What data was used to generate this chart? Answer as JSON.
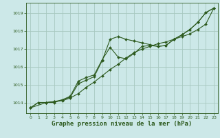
{
  "bg_color": "#cce8e8",
  "grid_color": "#a8c8c0",
  "line_color": "#2d5a1e",
  "xlabel": "Graphe pression niveau de la mer (hPa)",
  "xlabel_fontsize": 6.5,
  "ylim": [
    1013.4,
    1019.6
  ],
  "xlim": [
    -0.5,
    23.5
  ],
  "yticks": [
    1014,
    1015,
    1016,
    1017,
    1018,
    1019
  ],
  "xticks": [
    0,
    1,
    2,
    3,
    4,
    5,
    6,
    7,
    8,
    9,
    10,
    11,
    12,
    13,
    14,
    15,
    16,
    17,
    18,
    19,
    20,
    21,
    22,
    23
  ],
  "tick_labelsize": 4.5,
  "series1_x": [
    0,
    1,
    2,
    3,
    4,
    5,
    6,
    7,
    8,
    9,
    10,
    11,
    12,
    13,
    14,
    15,
    16,
    17,
    18,
    19,
    20,
    21,
    22,
    23
  ],
  "series1": [
    1013.7,
    1014.0,
    1014.0,
    1014.05,
    1014.1,
    1014.25,
    1014.5,
    1014.85,
    1015.15,
    1015.5,
    1015.85,
    1016.15,
    1016.5,
    1016.8,
    1017.0,
    1017.15,
    1017.3,
    1017.4,
    1017.55,
    1017.7,
    1017.85,
    1018.1,
    1018.4,
    1019.3
  ],
  "series2_x": [
    0,
    1,
    2,
    3,
    4,
    5,
    6,
    7,
    8,
    9,
    10,
    11,
    12,
    13,
    14,
    15,
    16,
    17,
    18,
    19,
    20,
    21,
    22,
    23
  ],
  "series2": [
    1013.7,
    1014.0,
    1014.0,
    1014.0,
    1014.15,
    1014.3,
    1015.05,
    1015.25,
    1015.45,
    1016.35,
    1017.55,
    1017.7,
    1017.55,
    1017.45,
    1017.35,
    1017.25,
    1017.15,
    1017.2,
    1017.55,
    1017.8,
    1018.1,
    1018.5,
    1019.05,
    1019.3
  ],
  "series3_x": [
    0,
    2,
    3,
    4,
    5,
    6,
    7,
    8,
    9,
    10,
    11,
    12,
    13,
    14,
    15,
    16,
    17,
    18,
    19,
    20,
    21,
    22,
    23
  ],
  "series3": [
    1013.7,
    1014.0,
    1014.05,
    1014.15,
    1014.35,
    1015.2,
    1015.4,
    1015.55,
    1016.4,
    1017.1,
    1016.55,
    1016.45,
    1016.75,
    1017.15,
    1017.2,
    1017.15,
    1017.2,
    1017.55,
    1017.8,
    1018.1,
    1018.5,
    1019.05,
    1019.3
  ]
}
